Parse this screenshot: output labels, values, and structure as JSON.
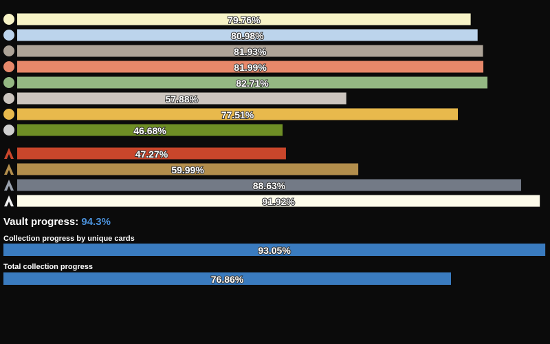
{
  "mana_bars": {
    "values": [
      79.76,
      80.98,
      81.93,
      81.99,
      82.71,
      57.88,
      77.51,
      46.68,
      47.27,
      59.99,
      88.63,
      91.92
    ],
    "value_labels": [
      "79.76%",
      "80.98%",
      "81.93%",
      "81.99%",
      "82.71%",
      "57.88%",
      "77.51%",
      "46.68%",
      "47.27%",
      "59.99%",
      "88.63%",
      "91.92%"
    ],
    "colors": [
      "#f7f3c6",
      "#bcd4ec",
      "#ada397",
      "#e7886a",
      "#94b883",
      "#cbc4be",
      "#e8b94c",
      "#6e8e25",
      "#c9462b",
      "#b38e4c",
      "#737a86",
      "#fdfbea"
    ]
  },
  "vault": {
    "label": "Vault progress:",
    "value_label": "94.3%"
  },
  "unique": {
    "title": "Collection progress by unique cards",
    "value": 93.05,
    "value_label": "93.05%",
    "color": "#3a7bbf"
  },
  "total": {
    "title": "Total collection progress",
    "value": 76.86,
    "value_label": "76.86%",
    "color": "#3a7bbf"
  }
}
